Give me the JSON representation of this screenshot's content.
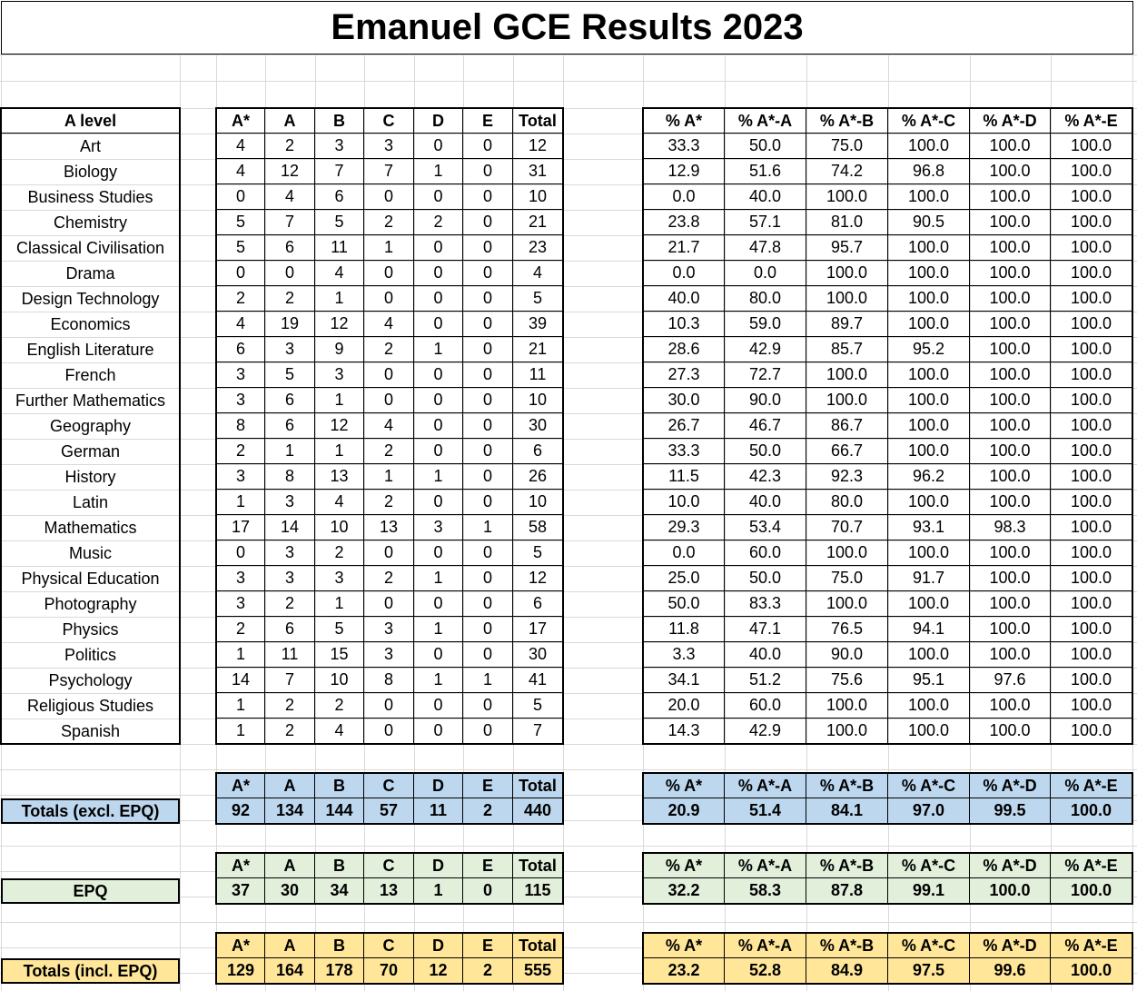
{
  "title": "Emanuel GCE Results 2023",
  "colors": {
    "totals_excl": "#bdd7ee",
    "epq": "#e2efda",
    "totals_incl": "#ffe699",
    "grid": "#d9d9d9"
  },
  "main": {
    "subject_header": "A level",
    "grade_headers": [
      "A*",
      "A",
      "B",
      "C",
      "D",
      "E",
      "Total"
    ],
    "pct_headers": [
      "% A*",
      "% A*-A",
      "% A*-B",
      "% A*-C",
      "% A*-D",
      "% A*-E"
    ],
    "rows": [
      {
        "subject": "Art",
        "grades": [
          "4",
          "2",
          "3",
          "3",
          "0",
          "0",
          "12"
        ],
        "pct": [
          "33.3",
          "50.0",
          "75.0",
          "100.0",
          "100.0",
          "100.0"
        ]
      },
      {
        "subject": "Biology",
        "grades": [
          "4",
          "12",
          "7",
          "7",
          "1",
          "0",
          "31"
        ],
        "pct": [
          "12.9",
          "51.6",
          "74.2",
          "96.8",
          "100.0",
          "100.0"
        ]
      },
      {
        "subject": "Business Studies",
        "grades": [
          "0",
          "4",
          "6",
          "0",
          "0",
          "0",
          "10"
        ],
        "pct": [
          "0.0",
          "40.0",
          "100.0",
          "100.0",
          "100.0",
          "100.0"
        ]
      },
      {
        "subject": "Chemistry",
        "grades": [
          "5",
          "7",
          "5",
          "2",
          "2",
          "0",
          "21"
        ],
        "pct": [
          "23.8",
          "57.1",
          "81.0",
          "90.5",
          "100.0",
          "100.0"
        ]
      },
      {
        "subject": "Classical Civilisation",
        "grades": [
          "5",
          "6",
          "11",
          "1",
          "0",
          "0",
          "23"
        ],
        "pct": [
          "21.7",
          "47.8",
          "95.7",
          "100.0",
          "100.0",
          "100.0"
        ]
      },
      {
        "subject": "Drama",
        "grades": [
          "0",
          "0",
          "4",
          "0",
          "0",
          "0",
          "4"
        ],
        "pct": [
          "0.0",
          "0.0",
          "100.0",
          "100.0",
          "100.0",
          "100.0"
        ]
      },
      {
        "subject": "Design Technology",
        "grades": [
          "2",
          "2",
          "1",
          "0",
          "0",
          "0",
          "5"
        ],
        "pct": [
          "40.0",
          "80.0",
          "100.0",
          "100.0",
          "100.0",
          "100.0"
        ]
      },
      {
        "subject": "Economics",
        "grades": [
          "4",
          "19",
          "12",
          "4",
          "0",
          "0",
          "39"
        ],
        "pct": [
          "10.3",
          "59.0",
          "89.7",
          "100.0",
          "100.0",
          "100.0"
        ]
      },
      {
        "subject": "English Literature",
        "grades": [
          "6",
          "3",
          "9",
          "2",
          "1",
          "0",
          "21"
        ],
        "pct": [
          "28.6",
          "42.9",
          "85.7",
          "95.2",
          "100.0",
          "100.0"
        ]
      },
      {
        "subject": "French",
        "grades": [
          "3",
          "5",
          "3",
          "0",
          "0",
          "0",
          "11"
        ],
        "pct": [
          "27.3",
          "72.7",
          "100.0",
          "100.0",
          "100.0",
          "100.0"
        ]
      },
      {
        "subject": "Further Mathematics",
        "grades": [
          "3",
          "6",
          "1",
          "0",
          "0",
          "0",
          "10"
        ],
        "pct": [
          "30.0",
          "90.0",
          "100.0",
          "100.0",
          "100.0",
          "100.0"
        ]
      },
      {
        "subject": "Geography",
        "grades": [
          "8",
          "6",
          "12",
          "4",
          "0",
          "0",
          "30"
        ],
        "pct": [
          "26.7",
          "46.7",
          "86.7",
          "100.0",
          "100.0",
          "100.0"
        ]
      },
      {
        "subject": "German",
        "grades": [
          "2",
          "1",
          "1",
          "2",
          "0",
          "0",
          "6"
        ],
        "pct": [
          "33.3",
          "50.0",
          "66.7",
          "100.0",
          "100.0",
          "100.0"
        ]
      },
      {
        "subject": "History",
        "grades": [
          "3",
          "8",
          "13",
          "1",
          "1",
          "0",
          "26"
        ],
        "pct": [
          "11.5",
          "42.3",
          "92.3",
          "96.2",
          "100.0",
          "100.0"
        ]
      },
      {
        "subject": "Latin",
        "grades": [
          "1",
          "3",
          "4",
          "2",
          "0",
          "0",
          "10"
        ],
        "pct": [
          "10.0",
          "40.0",
          "80.0",
          "100.0",
          "100.0",
          "100.0"
        ]
      },
      {
        "subject": "Mathematics",
        "grades": [
          "17",
          "14",
          "10",
          "13",
          "3",
          "1",
          "58"
        ],
        "pct": [
          "29.3",
          "53.4",
          "70.7",
          "93.1",
          "98.3",
          "100.0"
        ]
      },
      {
        "subject": "Music",
        "grades": [
          "0",
          "3",
          "2",
          "0",
          "0",
          "0",
          "5"
        ],
        "pct": [
          "0.0",
          "60.0",
          "100.0",
          "100.0",
          "100.0",
          "100.0"
        ]
      },
      {
        "subject": "Physical Education",
        "grades": [
          "3",
          "3",
          "3",
          "2",
          "1",
          "0",
          "12"
        ],
        "pct": [
          "25.0",
          "50.0",
          "75.0",
          "91.7",
          "100.0",
          "100.0"
        ]
      },
      {
        "subject": "Photography",
        "grades": [
          "3",
          "2",
          "1",
          "0",
          "0",
          "0",
          "6"
        ],
        "pct": [
          "50.0",
          "83.3",
          "100.0",
          "100.0",
          "100.0",
          "100.0"
        ]
      },
      {
        "subject": "Physics",
        "grades": [
          "2",
          "6",
          "5",
          "3",
          "1",
          "0",
          "17"
        ],
        "pct": [
          "11.8",
          "47.1",
          "76.5",
          "94.1",
          "100.0",
          "100.0"
        ]
      },
      {
        "subject": "Politics",
        "grades": [
          "1",
          "11",
          "15",
          "3",
          "0",
          "0",
          "30"
        ],
        "pct": [
          "3.3",
          "40.0",
          "90.0",
          "100.0",
          "100.0",
          "100.0"
        ]
      },
      {
        "subject": "Psychology",
        "grades": [
          "14",
          "7",
          "10",
          "8",
          "1",
          "1",
          "41"
        ],
        "pct": [
          "34.1",
          "51.2",
          "75.6",
          "95.1",
          "97.6",
          "100.0"
        ]
      },
      {
        "subject": "Religious Studies",
        "grades": [
          "1",
          "2",
          "2",
          "0",
          "0",
          "0",
          "5"
        ],
        "pct": [
          "20.0",
          "60.0",
          "100.0",
          "100.0",
          "100.0",
          "100.0"
        ]
      },
      {
        "subject": "Spanish",
        "grades": [
          "1",
          "2",
          "4",
          "0",
          "0",
          "0",
          "7"
        ],
        "pct": [
          "14.3",
          "42.9",
          "100.0",
          "100.0",
          "100.0",
          "100.0"
        ]
      }
    ]
  },
  "summaries": [
    {
      "key": "totals_excl",
      "label": "Totals (excl. EPQ)",
      "color": "blue",
      "grade_headers": [
        "A*",
        "A",
        "B",
        "C",
        "D",
        "E",
        "Total"
      ],
      "pct_headers": [
        "% A*",
        "% A*-A",
        "% A*-B",
        "% A*-C",
        "% A*-D",
        "% A*-E"
      ],
      "grades": [
        "92",
        "134",
        "144",
        "57",
        "11",
        "2",
        "440"
      ],
      "pct": [
        "20.9",
        "51.4",
        "84.1",
        "97.0",
        "99.5",
        "100.0"
      ]
    },
    {
      "key": "epq",
      "label": "EPQ",
      "color": "green",
      "grade_headers": [
        "A*",
        "A",
        "B",
        "C",
        "D",
        "E",
        "Total"
      ],
      "pct_headers": [
        "% A*",
        "% A*-A",
        "% A*-B",
        "% A*-C",
        "% A*-D",
        "% A*-E"
      ],
      "grades": [
        "37",
        "30",
        "34",
        "13",
        "1",
        "0",
        "115"
      ],
      "pct": [
        "32.2",
        "58.3",
        "87.8",
        "99.1",
        "100.0",
        "100.0"
      ]
    },
    {
      "key": "totals_incl",
      "label": "Totals (incl. EPQ)",
      "color": "orange",
      "grade_headers": [
        "A*",
        "A",
        "B",
        "C",
        "D",
        "E",
        "Total"
      ],
      "pct_headers": [
        "% A*",
        "% A*-A",
        "% A*-B",
        "% A*-C",
        "% A*-D",
        "% A*-E"
      ],
      "grades": [
        "129",
        "164",
        "178",
        "70",
        "12",
        "2",
        "555"
      ],
      "pct": [
        "23.2",
        "52.8",
        "84.9",
        "97.5",
        "99.6",
        "100.0"
      ]
    }
  ]
}
